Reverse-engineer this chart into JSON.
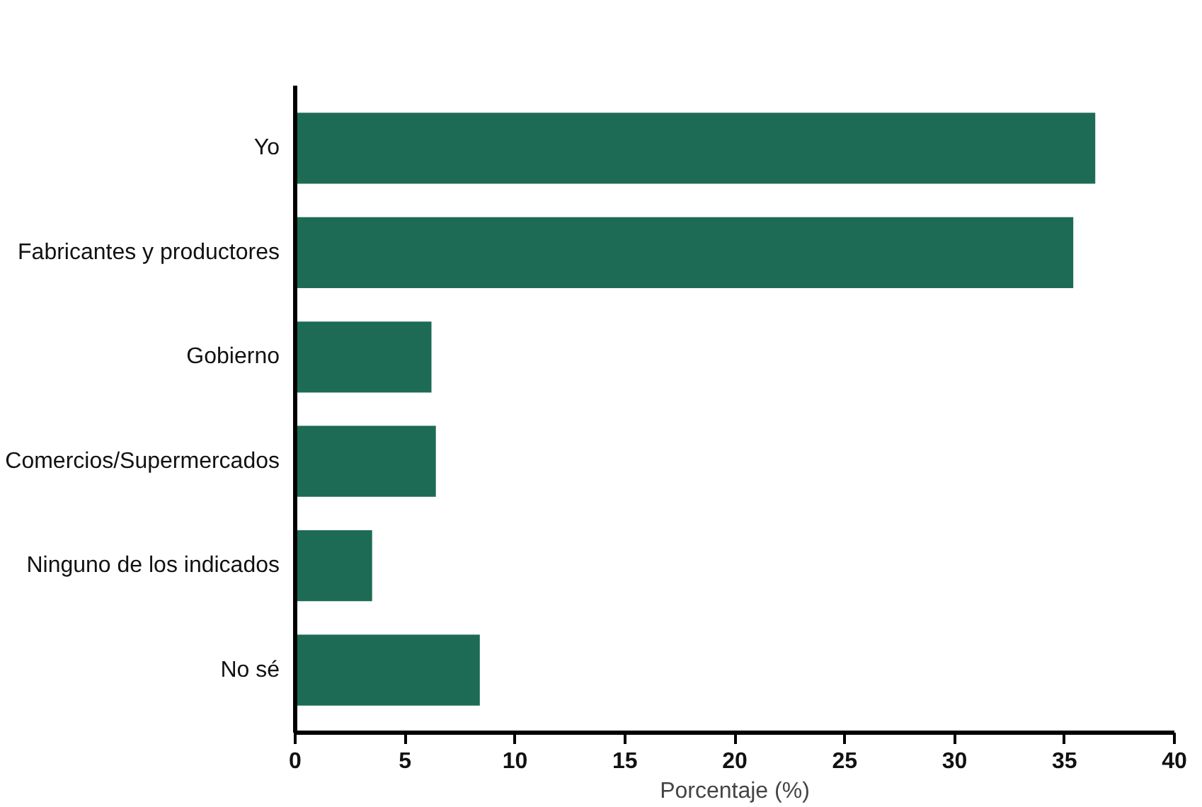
{
  "chart_data": {
    "type": "bar",
    "orientation": "horizontal",
    "xlabel": "Porcentaje (%)",
    "categories": [
      "Yo",
      "Fabricantes y productores",
      "Gobierno",
      "Comercios/Supermercados",
      "Ninguno de los indicados",
      "No sé"
    ],
    "values": [
      36.4,
      35.4,
      6.2,
      6.4,
      3.5,
      8.4
    ],
    "color": "#1d6b55",
    "xlim": [
      0,
      40
    ],
    "xticks": [
      0,
      5,
      10,
      15,
      20,
      25,
      30,
      35,
      40
    ],
    "grid": false
  }
}
